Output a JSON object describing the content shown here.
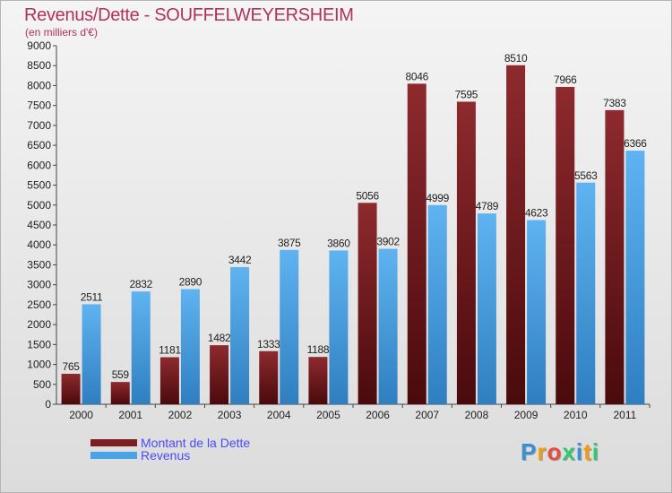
{
  "header": {
    "title": "Revenus/Dette - SOUFFELWEYERSHEIM",
    "subtitle": "(en milliers d'€)"
  },
  "colors": {
    "dette": "#7b1f22",
    "revenus": "#4aa3e6",
    "title": "#b03060",
    "legend_text": "#4a4aff"
  },
  "legend": {
    "dette_label": "Montant de la Dette",
    "revenus_label": "Revenus"
  },
  "logo": {
    "letters": [
      "P",
      "r",
      "o",
      "x",
      "i",
      "t",
      "i"
    ],
    "colors": [
      "#3a8fd6",
      "#f39c12",
      "#e74c3c",
      "#2ecc71",
      "#3a8fd6",
      "#f39c12",
      "#2ecc71"
    ]
  },
  "chart_data": {
    "type": "bar",
    "categories": [
      "2000",
      "2001",
      "2002",
      "2003",
      "2004",
      "2005",
      "2006",
      "2007",
      "2008",
      "2009",
      "2010",
      "2011"
    ],
    "series": [
      {
        "name": "Montant de la Dette",
        "values": [
          765,
          559,
          1181,
          1482,
          1333,
          1188,
          5056,
          8046,
          7595,
          8510,
          7966,
          7383
        ]
      },
      {
        "name": "Revenus",
        "values": [
          2511,
          2832,
          2890,
          3442,
          3875,
          3860,
          3902,
          4999,
          4789,
          4623,
          5563,
          6366
        ]
      }
    ],
    "value_labels": [
      [
        "765",
        "559",
        "1181",
        "1482",
        "1333",
        "1188",
        "5056",
        "8046",
        "7595",
        "8510",
        "7966",
        "7383"
      ],
      [
        "2511",
        "2832",
        "2890",
        "3442",
        "3875",
        "3860",
        "3902",
        "4999",
        "4789",
        "4623",
        "5563",
        "6366"
      ]
    ],
    "ylim": [
      0,
      9000
    ],
    "yticks": [
      0,
      500,
      1000,
      1500,
      2000,
      2500,
      3000,
      3500,
      4000,
      4500,
      5000,
      5500,
      6000,
      6500,
      7000,
      7500,
      8000,
      8500,
      9000
    ],
    "grid": false,
    "legend_position": "bottom-left"
  }
}
